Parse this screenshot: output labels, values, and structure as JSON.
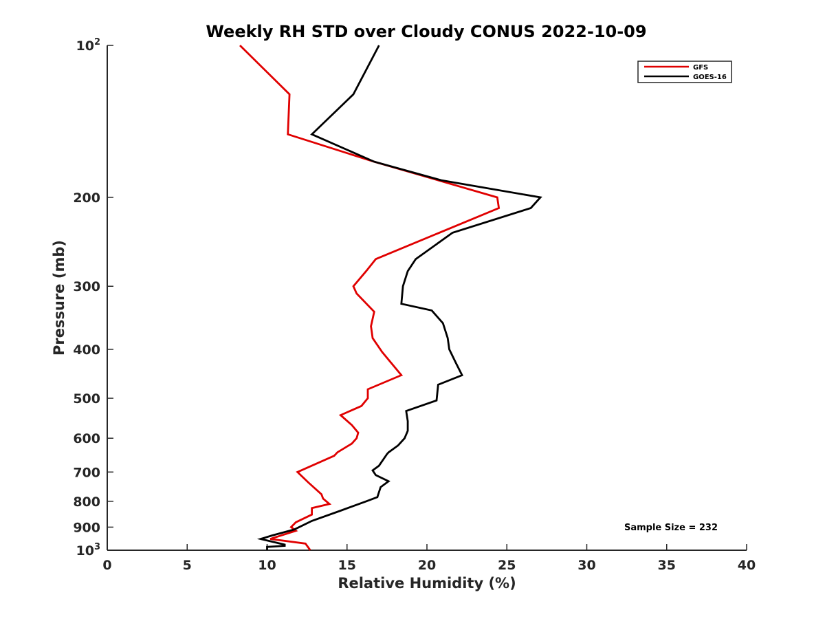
{
  "chart_data": {
    "type": "line",
    "title": "Weekly RH STD over Cloudy CONUS 2022-10-09",
    "xlabel": "Relative Humidity (%)",
    "ylabel": "Pressure (mb)",
    "xlim": [
      0,
      40
    ],
    "ylim": [
      100,
      1000
    ],
    "y_scale": "log",
    "y_reversed": true,
    "grid": false,
    "legend_position": "top-right",
    "annotation": "Sample Size = 232",
    "x_ticks": [
      "0",
      "5",
      "10",
      "15",
      "20",
      "25",
      "30",
      "35",
      "40"
    ],
    "y_ticks": [
      {
        "value": 100,
        "base": "10",
        "exp": "2",
        "label": ""
      },
      {
        "value": 200,
        "label": "200"
      },
      {
        "value": 300,
        "label": "300"
      },
      {
        "value": 400,
        "label": "400"
      },
      {
        "value": 500,
        "label": "500"
      },
      {
        "value": 600,
        "label": "600"
      },
      {
        "value": 700,
        "label": "700"
      },
      {
        "value": 800,
        "label": "800"
      },
      {
        "value": 900,
        "label": "900"
      },
      {
        "value": 1000,
        "base": "10",
        "exp": "3",
        "label": ""
      }
    ],
    "series": [
      {
        "name": "GFS",
        "color": "#e00000",
        "x": [
          8.3,
          11.4,
          11.3,
          16.7,
          24.4,
          24.5,
          16.8,
          16.2,
          15.4,
          15.6,
          16.7,
          16.5,
          16.6,
          17.2,
          18.4,
          16.3,
          16.3,
          15.9,
          14.6,
          15.3,
          15.7,
          15.6,
          15.3,
          14.4,
          14.2,
          11.9,
          12.1,
          12.6,
          12.7,
          13.4,
          13.5,
          13.9,
          12.8,
          12.8,
          11.8,
          11.5,
          11.8,
          10.2,
          12.4,
          12.7
        ],
        "y": [
          100,
          125,
          150,
          170,
          200,
          210,
          265,
          280,
          300,
          310,
          337,
          360,
          380,
          405,
          450,
          480,
          500,
          518,
          540,
          565,
          585,
          600,
          615,
          640,
          650,
          700,
          710,
          735,
          740,
          775,
          790,
          810,
          825,
          850,
          880,
          900,
          915,
          950,
          970,
          1000
        ]
      },
      {
        "name": "GOES-16",
        "color": "#000000",
        "x": [
          17.0,
          15.4,
          12.8,
          16.7,
          20.9,
          27.1,
          26.5,
          21.6,
          19.3,
          18.8,
          18.5,
          18.4,
          20.3,
          21.0,
          21.3,
          21.4,
          21.8,
          22.2,
          20.7,
          20.6,
          18.7,
          18.8,
          18.8,
          18.6,
          18.2,
          17.6,
          17.5,
          17.0,
          16.6,
          16.8,
          17.6,
          17.1,
          16.9,
          16.2,
          14.6,
          12.8,
          11.7,
          10.3,
          9.6,
          11.1,
          11.1,
          10.0,
          10.0
        ],
        "y": [
          100,
          125,
          150,
          170,
          185,
          200,
          210,
          235,
          265,
          280,
          300,
          325,
          335,
          355,
          380,
          400,
          425,
          450,
          470,
          505,
          530,
          555,
          580,
          600,
          620,
          640,
          645,
          680,
          695,
          710,
          730,
          750,
          785,
          800,
          835,
          875,
          910,
          935,
          950,
          975,
          980,
          985,
          1000
        ]
      }
    ]
  }
}
